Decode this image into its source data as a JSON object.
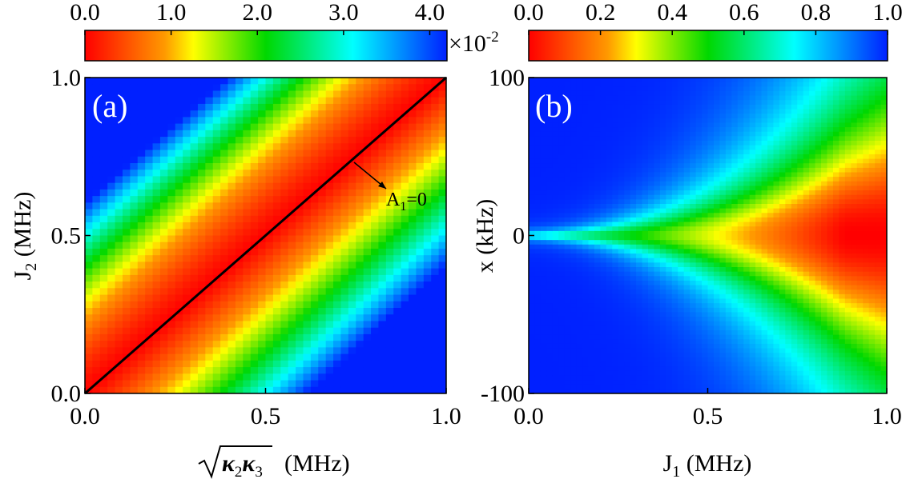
{
  "chart_data": [
    {
      "type": "heatmap",
      "panel_label": "(a)",
      "x": {
        "label_units": "(MHz)",
        "label_radical": "κ",
        "label_sub1": "2",
        "label_sub2": "3",
        "range": [
          0.0,
          1.0
        ],
        "ticks": [
          "0.0",
          "0.5",
          "1.0"
        ],
        "tick_values": [
          0.0,
          0.5,
          1.0
        ]
      },
      "y": {
        "label_main": "J",
        "label_sub": "2",
        "label_units": "(MHz)",
        "range": [
          0.0,
          1.0
        ],
        "ticks": [
          "0.0",
          "0.5",
          "1.0"
        ],
        "tick_values": [
          0.0,
          0.5,
          1.0
        ]
      },
      "colorbar": {
        "ticks": [
          "0.0",
          "1.0",
          "2.0",
          "3.0",
          "4.0"
        ],
        "tick_values": [
          0.0,
          1.0,
          2.0,
          3.0,
          4.0
        ],
        "range": [
          0.0,
          4.2
        ],
        "scale_prefix": "×10",
        "scale_exp": "-2"
      },
      "annotation": {
        "text_main": "A",
        "text_sub": "1",
        "text_rest": "=0",
        "line": "y = x (black diagonal)"
      }
    },
    {
      "type": "heatmap",
      "panel_label": "(b)",
      "x": {
        "label_main": "J",
        "label_sub": "1",
        "label_units": "(MHz)",
        "range": [
          0.0,
          1.0
        ],
        "ticks": [
          "0.0",
          "0.5",
          "1.0"
        ],
        "tick_values": [
          0.0,
          0.5,
          1.0
        ]
      },
      "y": {
        "label": "x (kHz)",
        "range": [
          -100,
          100
        ],
        "ticks": [
          "100",
          "0",
          "-100"
        ],
        "tick_values": [
          100,
          0,
          -100
        ]
      },
      "colorbar": {
        "ticks": [
          "0.0",
          "0.2",
          "0.4",
          "0.6",
          "0.8",
          "1.0"
        ],
        "tick_values": [
          0.0,
          0.2,
          0.4,
          0.6,
          0.8,
          1.0
        ],
        "range": [
          0.0,
          1.0
        ]
      }
    }
  ],
  "colors": {
    "red": "#ff0000",
    "yellow": "#ffff00",
    "green": "#00d800",
    "cyan": "#00ffff",
    "blue": "#0020ff"
  }
}
